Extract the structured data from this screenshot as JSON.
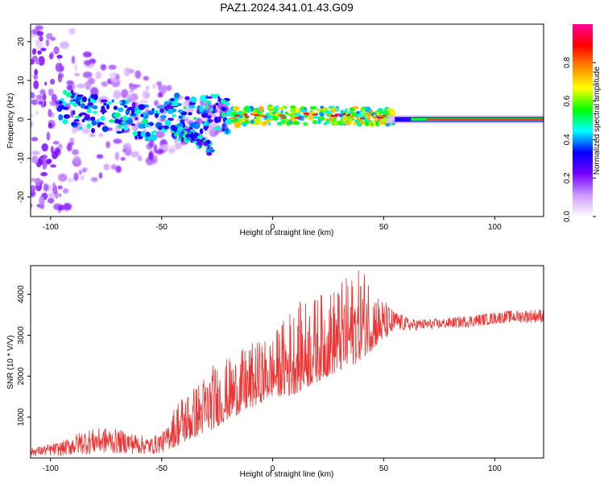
{
  "figure": {
    "title": "PAZ1.2024.341.01.43.G09"
  },
  "chart_data": [
    {
      "type": "heatmap",
      "name": "spectrogram",
      "xlabel": "Height of straight line (km)",
      "ylabel": "Frequency (Hz)",
      "xlim": [
        -109,
        122
      ],
      "ylim": [
        -25,
        24.5
      ],
      "xticks": [
        -100,
        -50,
        0,
        50,
        100
      ],
      "yticks": [
        -20,
        -10,
        0,
        10,
        20
      ],
      "grid": false,
      "colorbar": {
        "label": "Normalized spectral amplitude",
        "range": [
          0,
          1
        ],
        "ticks": [
          0.0,
          0.2,
          0.4,
          0.6,
          0.8
        ],
        "colormap": [
          "#ffffff",
          "#cc99ff",
          "#7700ff",
          "#0000ff",
          "#00ffff",
          "#00ff00",
          "#ffff00",
          "#ff8800",
          "#ff0000",
          "#ff0099"
        ]
      },
      "features": {
        "scatter_region_km": [
          -109,
          -20
        ],
        "main_band_center_hz": [
          {
            "x": -95,
            "y": 3
          },
          {
            "x": -85,
            "y": 2
          },
          {
            "x": -75,
            "y": 1
          },
          {
            "x": -65,
            "y": 0
          },
          {
            "x": -55,
            "y": -1
          },
          {
            "x": -45,
            "y": 2
          },
          {
            "x": -35,
            "y": 1
          },
          {
            "x": -25,
            "y": 2
          },
          {
            "x": -20,
            "y": 0.5
          },
          {
            "x": 0,
            "y": 1
          },
          {
            "x": 20,
            "y": 1
          },
          {
            "x": 40,
            "y": 0.8
          },
          {
            "x": 60,
            "y": 0.5
          },
          {
            "x": 122,
            "y": 0
          }
        ],
        "descending_branch_hz": [
          {
            "x": -45,
            "y": -3
          },
          {
            "x": -35,
            "y": -5
          },
          {
            "x": -27,
            "y": -8
          }
        ],
        "steady_line_from_km": 55
      }
    },
    {
      "type": "line",
      "name": "snr",
      "xlabel": "Height of straight line (km)",
      "ylabel": "SNR (10 * V/V)",
      "xlim": [
        -109,
        122
      ],
      "ylim": [
        0,
        4700
      ],
      "xticks": [
        -100,
        -50,
        0,
        50,
        100
      ],
      "yticks": [
        1000,
        2000,
        3000,
        4000
      ],
      "grid": false,
      "color": "#ee3333",
      "series": [
        {
          "values": [
            {
              "x": -109,
              "lo": 50,
              "hi": 250
            },
            {
              "x": -95,
              "lo": 50,
              "hi": 400
            },
            {
              "x": -85,
              "lo": 80,
              "hi": 700
            },
            {
              "x": -75,
              "lo": 100,
              "hi": 750
            },
            {
              "x": -65,
              "lo": 100,
              "hi": 650
            },
            {
              "x": -55,
              "lo": 80,
              "hi": 500
            },
            {
              "x": -48,
              "lo": 150,
              "hi": 700
            },
            {
              "x": -43,
              "lo": 300,
              "hi": 1500
            },
            {
              "x": -35,
              "lo": 500,
              "hi": 1800
            },
            {
              "x": -27,
              "lo": 700,
              "hi": 2300
            },
            {
              "x": -18,
              "lo": 1000,
              "hi": 2500
            },
            {
              "x": -10,
              "lo": 1200,
              "hi": 2800
            },
            {
              "x": 0,
              "lo": 1500,
              "hi": 3000
            },
            {
              "x": 8,
              "lo": 1500,
              "hi": 3700
            },
            {
              "x": 15,
              "lo": 1700,
              "hi": 3900
            },
            {
              "x": 25,
              "lo": 2000,
              "hi": 4100
            },
            {
              "x": 35,
              "lo": 2200,
              "hi": 4500
            },
            {
              "x": 42,
              "lo": 2500,
              "hi": 4700
            },
            {
              "x": 48,
              "lo": 2800,
              "hi": 4000
            },
            {
              "x": 55,
              "lo": 3100,
              "hi": 3600
            },
            {
              "x": 62,
              "lo": 3100,
              "hi": 3400
            },
            {
              "x": 75,
              "lo": 3150,
              "hi": 3400
            },
            {
              "x": 90,
              "lo": 3200,
              "hi": 3500
            },
            {
              "x": 105,
              "lo": 3300,
              "hi": 3600
            },
            {
              "x": 122,
              "lo": 3300,
              "hi": 3650
            }
          ]
        }
      ]
    }
  ]
}
